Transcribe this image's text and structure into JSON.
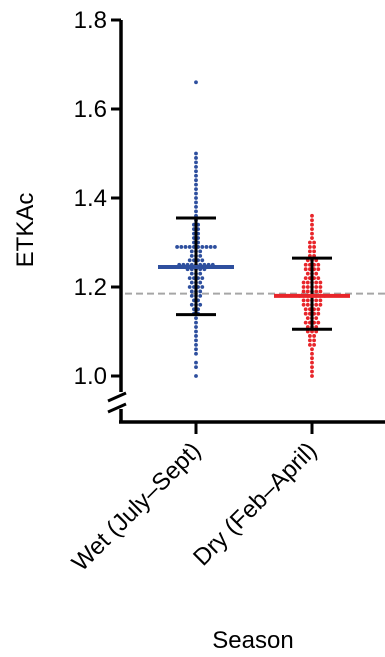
{
  "chart_data": {
    "type": "scatter",
    "xlabel": "Season",
    "ylabel": "ETKAc",
    "ylim": [
      1.0,
      1.8
    ],
    "y_axis_break": true,
    "yticks": [
      "1.0",
      "1.2",
      "1.4",
      "1.6",
      "1.8"
    ],
    "reference_line": 1.185,
    "categories": [
      "Wet (July–Sept)",
      "Dry (Feb–April)"
    ],
    "series": [
      {
        "color": "#2e4f9e",
        "mean": 1.245,
        "sd_upper": 1.355,
        "sd_lower": 1.138,
        "values": [
          1.66,
          1.5,
          1.49,
          1.48,
          1.47,
          1.46,
          1.45,
          1.44,
          1.43,
          1.42,
          1.41,
          1.4,
          1.39,
          1.38,
          1.37,
          1.36,
          1.35,
          1.34,
          1.34,
          1.33,
          1.33,
          1.32,
          1.32,
          1.31,
          1.31,
          1.3,
          1.3,
          1.29,
          1.29,
          1.29,
          1.29,
          1.29,
          1.29,
          1.29,
          1.29,
          1.29,
          1.29,
          1.28,
          1.28,
          1.28,
          1.27,
          1.27,
          1.27,
          1.26,
          1.26,
          1.26,
          1.26,
          1.25,
          1.25,
          1.25,
          1.25,
          1.25,
          1.25,
          1.25,
          1.25,
          1.25,
          1.24,
          1.24,
          1.24,
          1.24,
          1.24,
          1.23,
          1.23,
          1.23,
          1.22,
          1.22,
          1.22,
          1.22,
          1.21,
          1.21,
          1.21,
          1.2,
          1.2,
          1.2,
          1.2,
          1.19,
          1.19,
          1.19,
          1.18,
          1.18,
          1.18,
          1.17,
          1.17,
          1.16,
          1.16,
          1.16,
          1.15,
          1.15,
          1.14,
          1.14,
          1.13,
          1.12,
          1.11,
          1.1,
          1.09,
          1.08,
          1.07,
          1.06,
          1.05,
          1.03,
          1.02,
          1.0
        ]
      },
      {
        "color": "#e8252a",
        "mean": 1.18,
        "sd_upper": 1.265,
        "sd_lower": 1.105,
        "values": [
          1.36,
          1.35,
          1.34,
          1.33,
          1.32,
          1.31,
          1.3,
          1.3,
          1.29,
          1.29,
          1.28,
          1.28,
          1.27,
          1.27,
          1.26,
          1.26,
          1.26,
          1.25,
          1.25,
          1.25,
          1.25,
          1.24,
          1.24,
          1.24,
          1.24,
          1.23,
          1.23,
          1.23,
          1.22,
          1.22,
          1.22,
          1.22,
          1.21,
          1.21,
          1.21,
          1.21,
          1.21,
          1.2,
          1.2,
          1.2,
          1.2,
          1.2,
          1.19,
          1.19,
          1.19,
          1.19,
          1.19,
          1.18,
          1.18,
          1.18,
          1.18,
          1.18,
          1.18,
          1.18,
          1.17,
          1.17,
          1.17,
          1.17,
          1.17,
          1.16,
          1.16,
          1.16,
          1.16,
          1.16,
          1.15,
          1.15,
          1.15,
          1.15,
          1.14,
          1.14,
          1.14,
          1.14,
          1.13,
          1.13,
          1.13,
          1.12,
          1.12,
          1.12,
          1.12,
          1.11,
          1.11,
          1.11,
          1.1,
          1.1,
          1.1,
          1.09,
          1.09,
          1.08,
          1.08,
          1.07,
          1.07,
          1.06,
          1.05,
          1.04,
          1.03,
          1.02,
          1.01,
          1.0
        ]
      }
    ]
  }
}
